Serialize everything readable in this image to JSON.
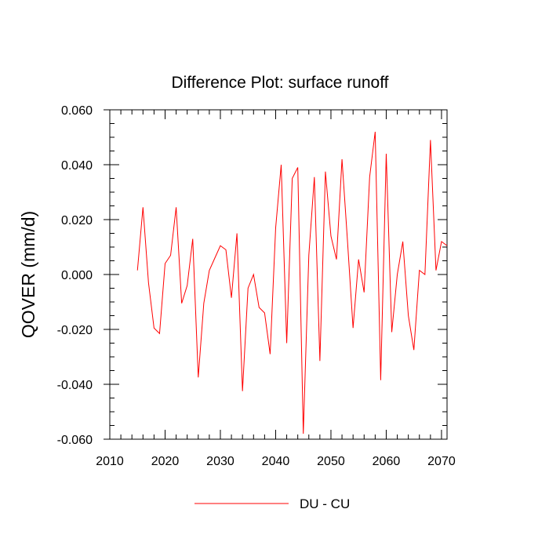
{
  "chart_data": {
    "type": "line",
    "title": "Difference Plot: surface runoff",
    "xlabel": "",
    "ylabel": "QOVER  (mm/d)",
    "xlim": [
      2010,
      2071
    ],
    "ylim": [
      -0.06,
      0.06
    ],
    "x_ticks": [
      2010,
      2020,
      2030,
      2040,
      2050,
      2060,
      2070
    ],
    "x_tick_labels": [
      "2010",
      "2020",
      "2030",
      "2040",
      "2050",
      "2060",
      "2070"
    ],
    "y_ticks": [
      0.06,
      0.04,
      0.02,
      0.0,
      -0.02,
      -0.04,
      -0.06
    ],
    "y_tick_labels": [
      "0.060",
      "0.040",
      "0.020",
      "0.000",
      "-0.020",
      "-0.040",
      "-0.060"
    ],
    "grid": false,
    "legend_position": "bottom-center",
    "series": [
      {
        "name": "DU - CU",
        "color": "#ff0000",
        "x": [
          2015,
          2016,
          2017,
          2018,
          2019,
          2020,
          2021,
          2022,
          2023,
          2024,
          2025,
          2026,
          2027,
          2028,
          2029,
          2030,
          2031,
          2032,
          2033,
          2034,
          2035,
          2036,
          2037,
          2038,
          2039,
          2040,
          2041,
          2042,
          2043,
          2044,
          2045,
          2046,
          2047,
          2048,
          2049,
          2050,
          2051,
          2052,
          2053,
          2054,
          2055,
          2056,
          2057,
          2058,
          2059,
          2060,
          2061,
          2062,
          2063,
          2064,
          2065,
          2066,
          2067,
          2068,
          2069,
          2070,
          2071
        ],
        "y": [
          0.0015,
          0.0245,
          -0.003,
          -0.0195,
          -0.0215,
          0.004,
          0.007,
          0.0245,
          -0.0105,
          -0.004,
          0.013,
          -0.0375,
          -0.0105,
          0.0015,
          0.006,
          0.0105,
          0.009,
          -0.0085,
          0.015,
          -0.0425,
          -0.005,
          0.0,
          -0.012,
          -0.014,
          -0.029,
          0.017,
          0.04,
          -0.025,
          0.035,
          0.039,
          -0.058,
          0.007,
          0.0355,
          -0.0315,
          0.0375,
          0.014,
          0.0055,
          0.042,
          0.012,
          -0.0195,
          0.0055,
          -0.0065,
          0.0355,
          0.052,
          -0.0385,
          0.044,
          -0.021,
          0.0,
          0.012,
          -0.015,
          -0.0275,
          0.0015,
          0.0,
          0.049,
          0.0015,
          0.012,
          0.0105
        ]
      }
    ]
  }
}
